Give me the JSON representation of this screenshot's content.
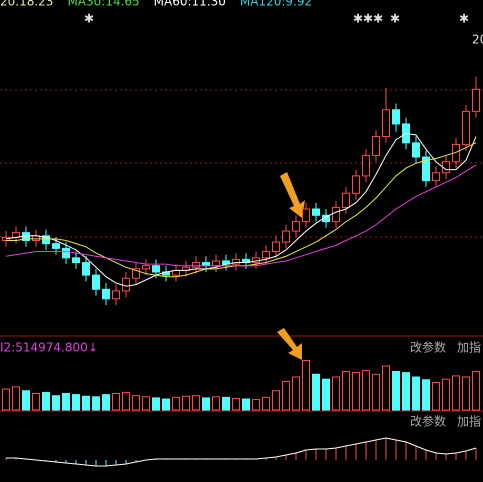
{
  "chart_data": [
    {
      "type": "candlestick",
      "legend": [
        {
          "text": "20.18.23",
          "color": "#e8e8a0"
        },
        {
          "text": "MA30:14.65",
          "color": "#40e040"
        },
        {
          "text": "MA60:11.30",
          "color": "#ffffff"
        },
        {
          "text": "MA120:9.92",
          "color": "#40d0e0"
        }
      ],
      "corner_label": "20",
      "ylim": [
        6,
        26
      ],
      "up_color": "#ff4a4a",
      "down_color": "#54fcfc",
      "open": [
        12.0,
        12.2,
        12.5,
        12.0,
        12.3,
        11.8,
        11.5,
        10.9,
        10.6,
        9.8,
        8.9,
        8.3,
        8.8,
        9.6,
        10.2,
        10.4,
        10.0,
        9.8,
        10.1,
        10.3,
        10.6,
        10.4,
        10.7,
        10.5,
        10.8,
        10.6,
        10.9,
        11.3,
        11.9,
        12.6,
        13.2,
        14.0,
        13.6,
        13.2,
        14.1,
        15.0,
        16.1,
        17.4,
        18.6,
        20.3,
        19.4,
        18.2,
        17.3,
        15.8,
        16.3,
        17.0,
        18.1,
        20.2
      ],
      "high": [
        12.6,
        12.9,
        12.9,
        12.7,
        12.7,
        12.2,
        11.9,
        11.3,
        11.0,
        10.2,
        9.3,
        9.2,
        10.0,
        10.6,
        10.8,
        10.8,
        10.4,
        10.5,
        10.7,
        11.0,
        11.0,
        11.1,
        11.1,
        11.2,
        11.2,
        11.3,
        11.7,
        12.3,
        13.0,
        13.6,
        14.4,
        14.4,
        14.0,
        14.5,
        15.4,
        16.5,
        17.8,
        19.0,
        21.7,
        20.7,
        19.8,
        18.6,
        17.7,
        16.7,
        17.4,
        18.5,
        20.6,
        22.4
      ],
      "low": [
        11.6,
        11.8,
        11.6,
        11.6,
        11.4,
        11.1,
        10.5,
        10.2,
        9.4,
        8.5,
        7.9,
        7.9,
        8.4,
        9.2,
        9.8,
        9.6,
        9.4,
        9.4,
        9.7,
        9.9,
        10.0,
        10.0,
        10.1,
        10.1,
        10.2,
        10.2,
        10.5,
        10.9,
        11.5,
        12.2,
        12.8,
        13.2,
        12.8,
        12.8,
        13.7,
        14.6,
        15.7,
        17.0,
        18.2,
        18.9,
        17.8,
        16.9,
        15.4,
        15.4,
        15.9,
        16.6,
        17.7,
        19.8
      ],
      "close": [
        12.2,
        12.5,
        12.0,
        12.3,
        11.8,
        11.5,
        10.9,
        10.6,
        9.8,
        8.9,
        8.3,
        8.8,
        9.6,
        10.2,
        10.4,
        10.0,
        9.8,
        10.1,
        10.3,
        10.6,
        10.4,
        10.7,
        10.5,
        10.8,
        10.6,
        10.9,
        11.3,
        11.9,
        12.6,
        13.2,
        14.0,
        13.6,
        13.2,
        14.1,
        15.0,
        16.1,
        17.4,
        18.6,
        20.3,
        19.4,
        18.2,
        17.3,
        15.8,
        16.3,
        17.0,
        18.1,
        20.2,
        21.6
      ],
      "lines": [
        {
          "color": "#ffffff",
          "values": [
            12.1,
            12.2,
            12.3,
            12.3,
            12.2,
            12.0,
            11.7,
            11.4,
            10.9,
            10.3,
            9.7,
            9.3,
            9.1,
            9.2,
            9.5,
            9.8,
            10.0,
            10.1,
            10.1,
            10.2,
            10.2,
            10.3,
            10.5,
            10.6,
            10.6,
            10.7,
            10.8,
            11.0,
            11.4,
            12.0,
            12.6,
            13.1,
            13.5,
            13.8,
            14.0,
            14.4,
            15.1,
            16.2,
            17.4,
            18.4,
            18.8,
            18.7,
            17.8,
            17.0,
            16.5,
            16.5,
            17.1,
            18.6
          ]
        },
        {
          "color": "#e8e840",
          "values": [
            12.0,
            12.0,
            12.1,
            12.1,
            12.1,
            12.1,
            12.0,
            11.8,
            11.6,
            11.2,
            10.9,
            10.6,
            10.3,
            10.1,
            9.9,
            9.8,
            9.7,
            9.7,
            9.8,
            10.0,
            10.2,
            10.2,
            10.3,
            10.4,
            10.4,
            10.5,
            10.6,
            10.8,
            11.0,
            11.3,
            11.6,
            11.9,
            12.3,
            12.7,
            13.2,
            13.6,
            14.1,
            14.7,
            15.4,
            16.1,
            16.6,
            16.9,
            17.1,
            17.2,
            17.4,
            17.6,
            17.9,
            18.2
          ]
        },
        {
          "color": "#e040e0",
          "values": [
            11.0,
            11.1,
            11.2,
            11.3,
            11.3,
            11.3,
            11.3,
            11.2,
            11.1,
            11.0,
            10.9,
            10.8,
            10.7,
            10.6,
            10.5,
            10.5,
            10.5,
            10.4,
            10.4,
            10.4,
            10.4,
            10.4,
            10.4,
            10.4,
            10.4,
            10.4,
            10.5,
            10.6,
            10.7,
            10.9,
            11.1,
            11.3,
            11.5,
            11.7,
            12.0,
            12.3,
            12.6,
            13.0,
            13.5,
            14.0,
            14.4,
            14.8,
            15.1,
            15.4,
            15.7,
            16.0,
            16.4,
            16.8
          ]
        }
      ]
    },
    {
      "type": "volume",
      "label": "I2:514974.800",
      "label_color": "#e040e0",
      "buttons": [
        "改参数",
        "加指"
      ],
      "ylim": [
        0,
        1000000
      ],
      "values": [
        380000,
        420000,
        350000,
        300000,
        320000,
        260000,
        300000,
        280000,
        250000,
        240000,
        280000,
        300000,
        320000,
        260000,
        240000,
        220000,
        200000,
        230000,
        250000,
        260000,
        220000,
        240000,
        230000,
        210000,
        200000,
        190000,
        230000,
        350000,
        520000,
        600000,
        900000,
        650000,
        560000,
        600000,
        700000,
        680000,
        720000,
        650000,
        800000,
        700000,
        680000,
        600000,
        550000,
        500000,
        560000,
        620000,
        600000,
        700000
      ]
    },
    {
      "type": "macd",
      "buttons": [
        "改参数",
        "加指"
      ],
      "ylim": [
        -1,
        1.4
      ],
      "values": [
        0.1,
        0.1,
        0.05,
        0,
        -0.05,
        -0.1,
        -0.15,
        -0.2,
        -0.25,
        -0.3,
        -0.3,
        -0.25,
        -0.2,
        -0.1,
        0,
        0.05,
        0.05,
        0.05,
        0.05,
        0.05,
        0.05,
        0.05,
        0.05,
        0.05,
        0.05,
        0.05,
        0.1,
        0.15,
        0.25,
        0.35,
        0.5,
        0.55,
        0.55,
        0.6,
        0.7,
        0.8,
        0.9,
        1.0,
        1.1,
        1.0,
        0.9,
        0.7,
        0.5,
        0.35,
        0.3,
        0.35,
        0.45,
        0.6
      ]
    }
  ]
}
